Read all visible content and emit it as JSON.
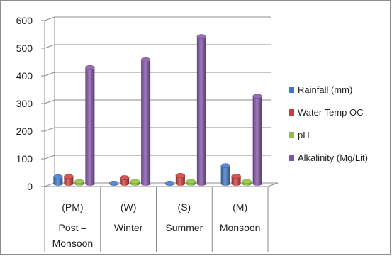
{
  "chart_data": {
    "type": "bar",
    "title": "",
    "xlabel": "",
    "ylabel": "",
    "ylim": [
      0,
      600
    ],
    "yticks": [
      0,
      100,
      200,
      300,
      400,
      500,
      600
    ],
    "grid": true,
    "legend_position": "right",
    "categories": [
      {
        "abbr": "(PM)",
        "name": "Post –",
        "name2": "Monsoon"
      },
      {
        "abbr": "(W)",
        "name": "Winter",
        "name2": ""
      },
      {
        "abbr": "(S)",
        "name": "Summer",
        "name2": ""
      },
      {
        "abbr": "(M)",
        "name": "Monsoon",
        "name2": ""
      }
    ],
    "series": [
      {
        "name": "Rainfall (mm)",
        "values": [
          25,
          2,
          2,
          65
        ],
        "color": "#3a78c8"
      },
      {
        "name": "Water Temp OC",
        "values": [
          26,
          22,
          30,
          27
        ],
        "color": "#cc3a3a"
      },
      {
        "name": "pH",
        "values": [
          8,
          8,
          8,
          8
        ],
        "color": "#8ec23e"
      },
      {
        "name": "Alkalinity (Mg/Lit)",
        "values": [
          420,
          448,
          532,
          316
        ],
        "color": "#8252a8"
      }
    ]
  }
}
